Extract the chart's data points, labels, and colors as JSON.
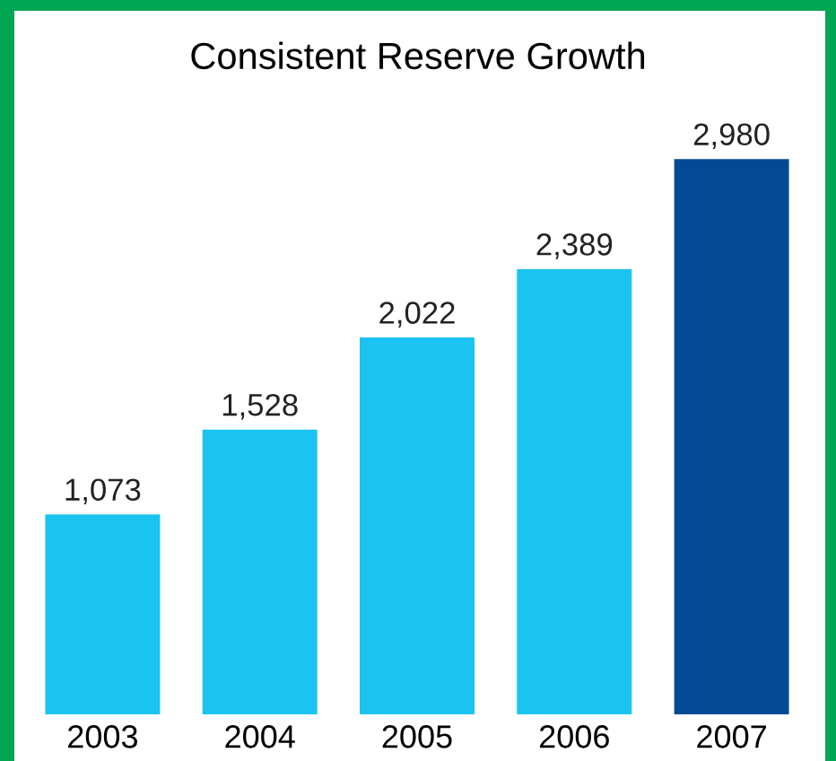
{
  "chart_data": {
    "type": "bar",
    "title": "Consistent Reserve Growth",
    "categories": [
      "2003",
      "2004",
      "2005",
      "2006",
      "2007"
    ],
    "values": [
      1073,
      1528,
      2022,
      2389,
      2980
    ],
    "colors": [
      "#1ac3f0",
      "#1ac3f0",
      "#1ac3f0",
      "#1ac3f0",
      "#034a94"
    ],
    "value_labels": [
      "1,073",
      "1,528",
      "2,022",
      "2,389",
      "2,980"
    ]
  }
}
